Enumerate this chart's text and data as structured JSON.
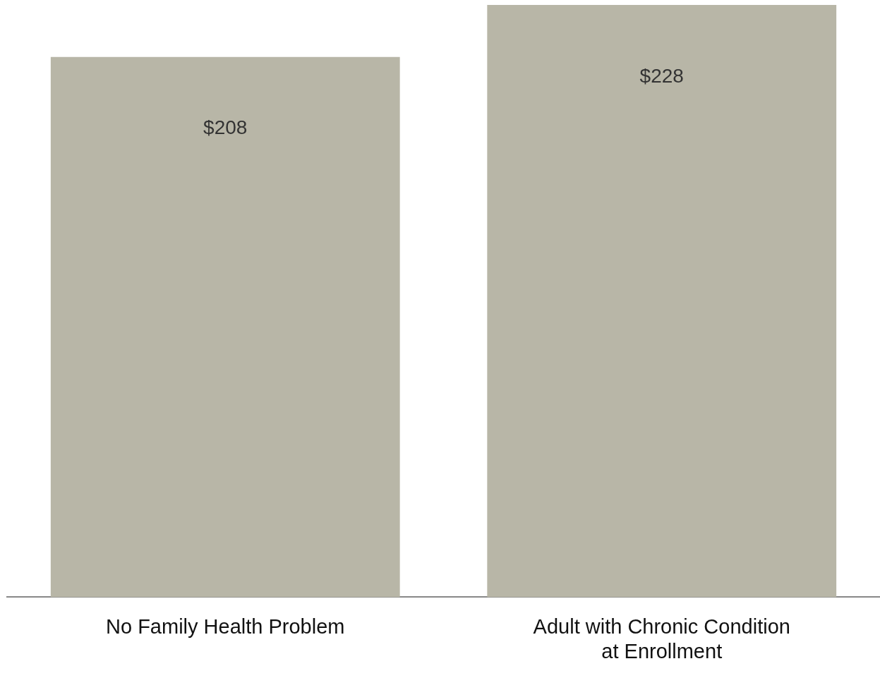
{
  "chart_data": {
    "type": "bar",
    "categories": [
      "No Family Health Problem",
      "Adult with Chronic Condition at Enrollment"
    ],
    "values": [
      208,
      228
    ],
    "color": "#b8b6a7",
    "value_labels": [
      "$208",
      "$228"
    ],
    "ylim": [
      0,
      228
    ],
    "tick_labels": "x",
    "grid": false,
    "legend": false
  }
}
